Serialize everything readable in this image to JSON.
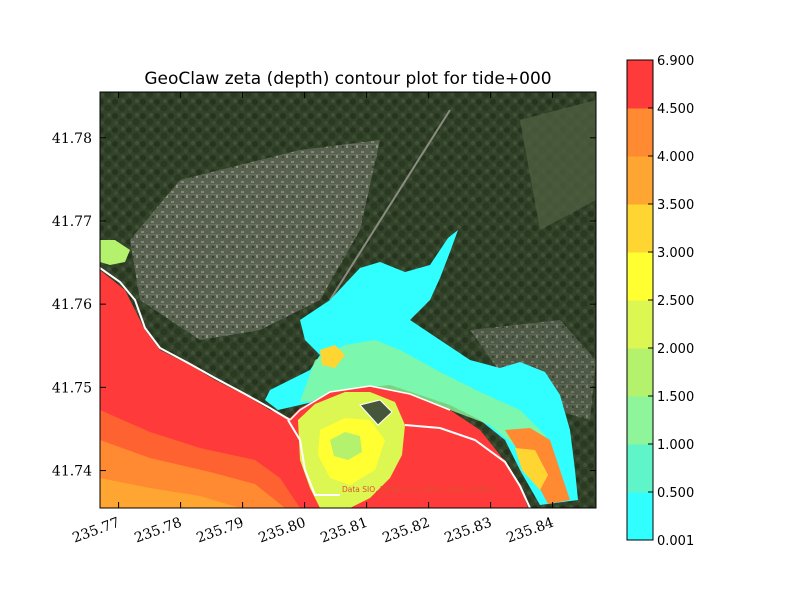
{
  "chart_data": {
    "type": "heatmap",
    "title": "GeoClaw zeta (depth) contour plot for tide+000",
    "xlabel": "",
    "ylabel": "",
    "xlim": [
      235.767,
      235.847
    ],
    "ylim": [
      41.7355,
      41.7855
    ],
    "x_ticks": [
      {
        "value": 235.77,
        "label": "235.77"
      },
      {
        "value": 235.78,
        "label": "235.78"
      },
      {
        "value": 235.79,
        "label": "235.79"
      },
      {
        "value": 235.8,
        "label": "235.80"
      },
      {
        "value": 235.81,
        "label": "235.81"
      },
      {
        "value": 235.82,
        "label": "235.82"
      },
      {
        "value": 235.83,
        "label": "235.83"
      },
      {
        "value": 235.84,
        "label": "235.84"
      }
    ],
    "y_ticks": [
      {
        "value": 41.74,
        "label": "41.74"
      },
      {
        "value": 41.75,
        "label": "41.75"
      },
      {
        "value": 41.76,
        "label": "41.76"
      },
      {
        "value": 41.77,
        "label": "41.77"
      },
      {
        "value": 41.78,
        "label": "41.78"
      }
    ],
    "colorbar": {
      "levels": [
        "0.001",
        "0.500",
        "1.000",
        "1.500",
        "2.000",
        "2.500",
        "3.000",
        "3.500",
        "4.000",
        "4.500",
        "6.900"
      ],
      "colors": [
        "#31ffff",
        "#5ff5c8",
        "#8ef59a",
        "#b4f26e",
        "#dcf752",
        "#ffff31",
        "#ffd631",
        "#ffa531",
        "#ff8a31",
        "#ff6231"
      ],
      "top_color": "#ff3a3a"
    },
    "credit": "Data SIO, NOAA, U.S. Navy, NGA, GEBCO",
    "colors": {
      "basemap_dark": "#2c3a1f",
      "basemap_mid": "#46563a",
      "urban": "#7a7f70",
      "coastline": "#ffffff"
    }
  }
}
